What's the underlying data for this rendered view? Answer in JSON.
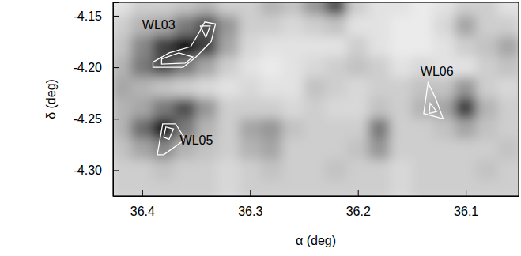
{
  "chart_data": {
    "type": "heatmap",
    "xlabel": "α (deg)",
    "ylabel": "δ (deg)",
    "xlim": [
      36.427,
      36.051
    ],
    "ylim": [
      -4.325,
      -4.137
    ],
    "xticks": [
      36.4,
      36.3,
      36.2,
      36.1
    ],
    "yticks": [
      {
        "value": -4.3,
        "label": "-4.30"
      },
      -4.25,
      {
        "value": -4.2,
        "label": "-4.20"
      },
      -4.15
    ],
    "zlim": [
      0,
      1
    ],
    "cells": {
      "x": [
        36.42,
        36.4,
        36.38,
        36.36,
        36.34,
        36.32,
        36.3,
        36.28,
        36.26,
        36.24,
        36.22,
        36.2,
        36.18,
        36.16,
        36.14,
        36.12,
        36.1,
        36.08,
        36.06,
        36.04
      ],
      "y": [
        -4.14,
        -4.16,
        -4.18,
        -4.2,
        -4.22,
        -4.24,
        -4.26,
        -4.28,
        -4.3,
        -4.32
      ],
      "values": [
        [
          0.2,
          0.3,
          0.3,
          0.35,
          0.4,
          0.3,
          0.3,
          0.4,
          0.35,
          0.5,
          0.75,
          0.3,
          0.2,
          0.2,
          0.15,
          0.2,
          0.3,
          0.3,
          0.2,
          0.2
        ],
        [
          0.3,
          0.4,
          0.45,
          0.6,
          0.75,
          0.5,
          0.3,
          0.3,
          0.25,
          0.3,
          0.35,
          0.2,
          0.2,
          0.15,
          0.15,
          0.25,
          0.45,
          0.3,
          0.3,
          0.2
        ],
        [
          0.35,
          0.55,
          0.8,
          0.95,
          0.8,
          0.45,
          0.25,
          0.2,
          0.2,
          0.2,
          0.2,
          0.3,
          0.2,
          0.15,
          0.15,
          0.2,
          0.3,
          0.35,
          0.45,
          0.3
        ],
        [
          0.4,
          0.6,
          0.75,
          0.6,
          0.45,
          0.3,
          0.2,
          0.15,
          0.2,
          0.25,
          0.3,
          0.35,
          0.3,
          0.2,
          0.25,
          0.2,
          0.2,
          0.3,
          0.35,
          0.3
        ],
        [
          0.45,
          0.4,
          0.35,
          0.3,
          0.25,
          0.2,
          0.25,
          0.2,
          0.2,
          0.35,
          0.3,
          0.25,
          0.3,
          0.3,
          0.35,
          0.35,
          0.5,
          0.3,
          0.25,
          0.3
        ],
        [
          0.4,
          0.45,
          0.6,
          0.75,
          0.5,
          0.3,
          0.3,
          0.3,
          0.25,
          0.3,
          0.25,
          0.25,
          0.35,
          0.3,
          0.4,
          0.45,
          0.8,
          0.4,
          0.3,
          0.3
        ],
        [
          0.4,
          0.65,
          0.95,
          0.6,
          0.4,
          0.3,
          0.45,
          0.5,
          0.35,
          0.3,
          0.3,
          0.3,
          0.6,
          0.3,
          0.3,
          0.35,
          0.45,
          0.35,
          0.3,
          0.3
        ],
        [
          0.35,
          0.45,
          0.55,
          0.4,
          0.35,
          0.3,
          0.4,
          0.45,
          0.3,
          0.3,
          0.3,
          0.35,
          0.5,
          0.3,
          0.3,
          0.3,
          0.3,
          0.3,
          0.35,
          0.3
        ],
        [
          0.3,
          0.3,
          0.35,
          0.3,
          0.3,
          0.25,
          0.3,
          0.35,
          0.3,
          0.3,
          0.35,
          0.3,
          0.3,
          0.25,
          0.3,
          0.3,
          0.3,
          0.35,
          0.3,
          0.3
        ],
        [
          0.3,
          0.3,
          0.3,
          0.3,
          0.3,
          0.25,
          0.3,
          0.3,
          0.3,
          0.3,
          0.3,
          0.3,
          0.3,
          0.25,
          0.3,
          0.3,
          0.3,
          0.3,
          0.3,
          0.3
        ]
      ]
    },
    "contours": [
      {
        "x": [
          36.39,
          36.375,
          36.355,
          36.347,
          36.342,
          36.332,
          36.336,
          36.35,
          36.362,
          36.39
        ],
        "y": [
          -4.195,
          -4.186,
          -4.18,
          -4.166,
          -4.156,
          -4.158,
          -4.175,
          -4.19,
          -4.2,
          -4.2
        ]
      },
      {
        "x": [
          36.382,
          36.366,
          36.353,
          36.36,
          36.382
        ],
        "y": [
          -4.192,
          -4.186,
          -4.19,
          -4.196,
          -4.197
        ]
      },
      {
        "x": [
          36.346,
          36.337,
          36.341
        ],
        "y": [
          -4.16,
          -4.16,
          -4.171
        ]
      },
      {
        "x": [
          36.386,
          36.381,
          36.369,
          36.36,
          36.38,
          36.386
        ],
        "y": [
          -4.285,
          -4.255,
          -4.255,
          -4.27,
          -4.285,
          -4.285
        ]
      },
      {
        "x": [
          36.38,
          36.378,
          36.371,
          36.375
        ],
        "y": [
          -4.268,
          -4.258,
          -4.26,
          -4.27
        ]
      },
      {
        "x": [
          36.135,
          36.139,
          36.121,
          36.128
        ],
        "y": [
          -4.215,
          -4.245,
          -4.25,
          -4.23
        ]
      },
      {
        "x": [
          36.133,
          36.134,
          36.127
        ],
        "y": [
          -4.235,
          -4.245,
          -4.243
        ]
      }
    ],
    "annotations": [
      {
        "text": "WL03",
        "x": 36.4,
        "y": -4.163
      },
      {
        "text": "WL05",
        "x": 36.365,
        "y": -4.275
      },
      {
        "text": "WL06",
        "x": 36.142,
        "y": -4.208
      }
    ]
  }
}
